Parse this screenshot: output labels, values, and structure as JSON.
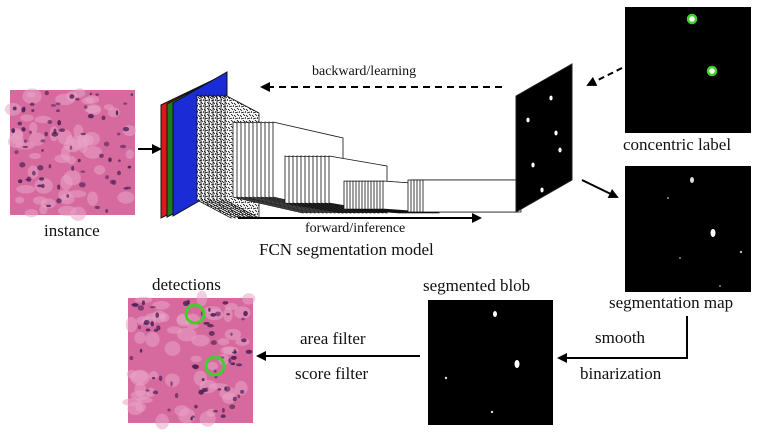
{
  "labels": {
    "instance": "instance",
    "fcn_model": "FCN segmentation model",
    "backward": "backward/learning",
    "forward": "forward/inference",
    "concentric": "concentric label",
    "seg_map": "segmentation map",
    "smooth": "smooth",
    "binarization": "binarization",
    "segmented_blob": "segmented blob",
    "area_filter": "area filter",
    "score_filter": "score filter",
    "detections": "detections"
  },
  "colors": {
    "tissue_base": "#d66a9e",
    "tissue_light": "#eaa3c6",
    "nucleus": "#4a1f55",
    "detection_ring": "#3fd12a",
    "black": "#000000",
    "input_red": "#e0161a",
    "input_green": "#1d7a1d",
    "input_blue": "#1b2bd6"
  }
}
